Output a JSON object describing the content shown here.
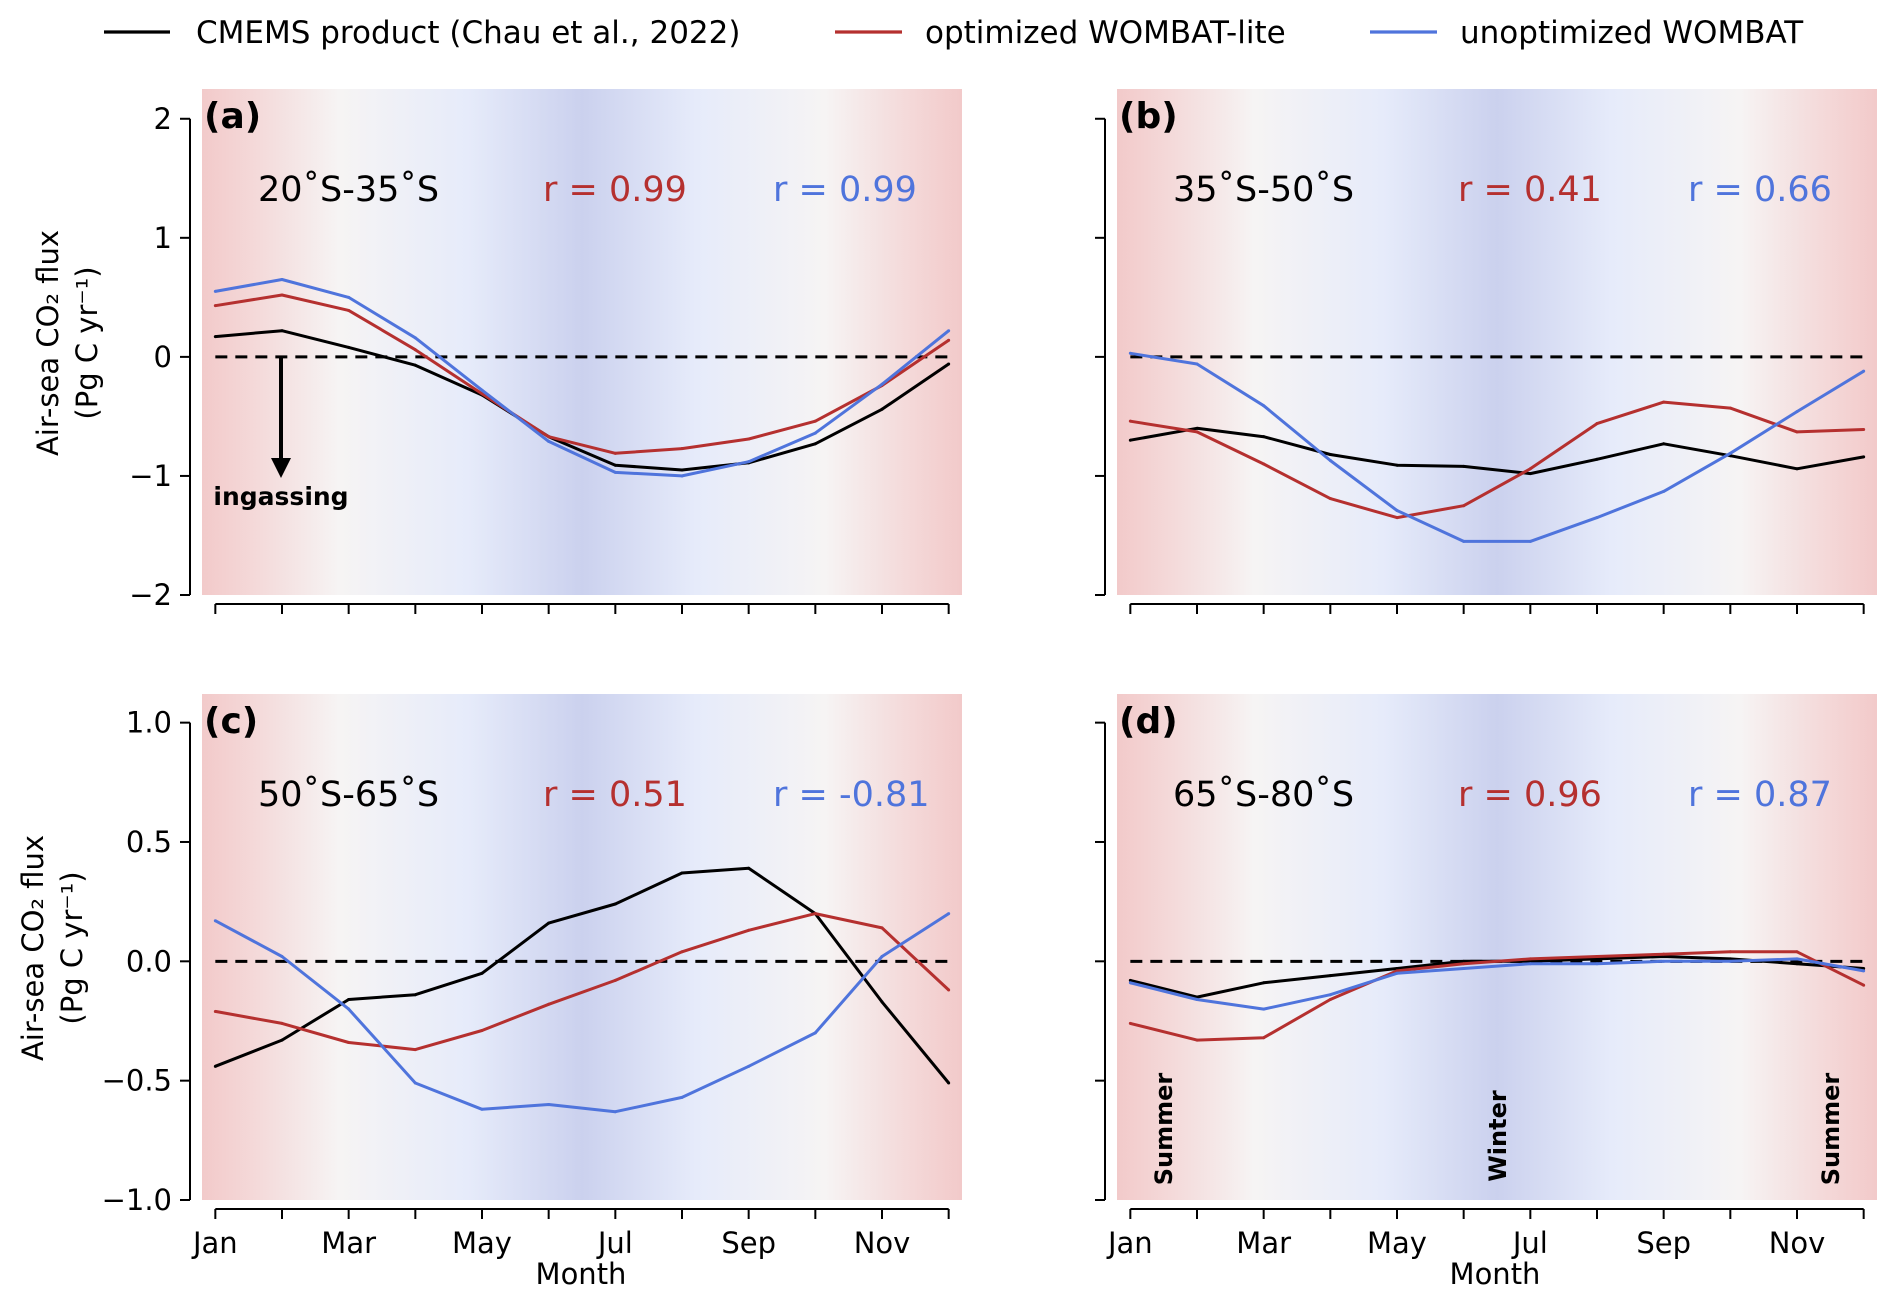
{
  "colors": {
    "cmems": "#000000",
    "lite": "#b5302f",
    "unopt": "#4f74dc",
    "summer": "#f1c4c4",
    "winter": "#cbd1ee",
    "mid": "#f6f4f4"
  },
  "legend": {
    "cmems": "CMEMS product (Chau et al., 2022)",
    "lite": "optimized WOMBAT-lite",
    "unopt": "unoptimized WOMBAT"
  },
  "xlabel": "Month",
  "ylabel": "Air-sea CO₂ flux",
  "ylabel_units": "(Pg C yr⁻¹)",
  "x_tick_labels": [
    "Jan",
    "Mar",
    "May",
    "Jul",
    "Sep",
    "Nov"
  ],
  "ingassing_label": "ingassing",
  "season_labels": {
    "summer": "Summer",
    "winter": "Winter"
  },
  "chart_data": [
    {
      "type": "line",
      "panel": "(a)",
      "region": "20˚S-35˚S",
      "r_lite": "r = 0.99",
      "r_unopt": "r = 0.99",
      "x": [
        1,
        2,
        3,
        4,
        5,
        6,
        7,
        8,
        9,
        10,
        11,
        12
      ],
      "ylim": [
        -2,
        2.25
      ],
      "yticks": [
        -2,
        -1,
        0,
        1,
        2
      ],
      "ytick_labels": [
        "−2",
        "−1",
        "0",
        "1",
        "2"
      ],
      "series": [
        {
          "name": "CMEMS product (Chau et al., 2022)",
          "key": "cmems",
          "values": [
            0.17,
            0.22,
            0.08,
            -0.07,
            -0.32,
            -0.67,
            -0.91,
            -0.95,
            -0.89,
            -0.73,
            -0.44,
            -0.06
          ]
        },
        {
          "name": "optimized WOMBAT-lite",
          "key": "lite",
          "values": [
            0.43,
            0.52,
            0.39,
            0.06,
            -0.31,
            -0.67,
            -0.81,
            -0.77,
            -0.69,
            -0.54,
            -0.24,
            0.14
          ]
        },
        {
          "name": "unoptimized WOMBAT",
          "key": "unopt",
          "values": [
            0.55,
            0.65,
            0.5,
            0.16,
            -0.28,
            -0.71,
            -0.97,
            -1.0,
            -0.88,
            -0.64,
            -0.23,
            0.22
          ]
        }
      ]
    },
    {
      "type": "line",
      "panel": "(b)",
      "region": "35˚S-50˚S",
      "r_lite": "r = 0.41",
      "r_unopt": "r = 0.66",
      "x": [
        1,
        2,
        3,
        4,
        5,
        6,
        7,
        8,
        9,
        10,
        11,
        12
      ],
      "ylim": [
        -2,
        2.25
      ],
      "yticks": [
        -2,
        -1,
        0,
        1,
        2
      ],
      "series": [
        {
          "name": "CMEMS product (Chau et al., 2022)",
          "key": "cmems",
          "values": [
            -0.7,
            -0.6,
            -0.67,
            -0.82,
            -0.91,
            -0.92,
            -0.98,
            -0.86,
            -0.73,
            -0.83,
            -0.94,
            -0.84
          ]
        },
        {
          "name": "optimized WOMBAT-lite",
          "key": "lite",
          "values": [
            -0.54,
            -0.63,
            -0.9,
            -1.19,
            -1.35,
            -1.25,
            -0.94,
            -0.56,
            -0.38,
            -0.43,
            -0.63,
            -0.61
          ]
        },
        {
          "name": "unoptimized WOMBAT",
          "key": "unopt",
          "values": [
            0.03,
            -0.06,
            -0.41,
            -0.87,
            -1.29,
            -1.55,
            -1.55,
            -1.35,
            -1.13,
            -0.81,
            -0.46,
            -0.12
          ]
        }
      ]
    },
    {
      "type": "line",
      "panel": "(c)",
      "region": "50˚S-65˚S",
      "r_lite": "r = 0.51",
      "r_unopt": "r = -0.81",
      "x": [
        1,
        2,
        3,
        4,
        5,
        6,
        7,
        8,
        9,
        10,
        11,
        12
      ],
      "ylim": [
        -1.0,
        1.12
      ],
      "yticks": [
        -1.0,
        -0.5,
        0.0,
        0.5,
        1.0
      ],
      "ytick_labels": [
        "−1.0",
        "−0.5",
        "0.0",
        "0.5",
        "1.0"
      ],
      "series": [
        {
          "name": "CMEMS product (Chau et al., 2022)",
          "key": "cmems",
          "values": [
            -0.44,
            -0.33,
            -0.16,
            -0.14,
            -0.05,
            0.16,
            0.24,
            0.37,
            0.39,
            0.2,
            -0.17,
            -0.51
          ]
        },
        {
          "name": "optimized WOMBAT-lite",
          "key": "lite",
          "values": [
            -0.21,
            -0.26,
            -0.34,
            -0.37,
            -0.29,
            -0.18,
            -0.08,
            0.04,
            0.13,
            0.2,
            0.14,
            -0.12
          ]
        },
        {
          "name": "unoptimized WOMBAT",
          "key": "unopt",
          "values": [
            0.17,
            0.02,
            -0.2,
            -0.51,
            -0.62,
            -0.6,
            -0.63,
            -0.57,
            -0.44,
            -0.3,
            0.02,
            0.2
          ]
        }
      ]
    },
    {
      "type": "line",
      "panel": "(d)",
      "region": "65˚S-80˚S",
      "r_lite": "r = 0.96",
      "r_unopt": "r = 0.87",
      "x": [
        1,
        2,
        3,
        4,
        5,
        6,
        7,
        8,
        9,
        10,
        11,
        12
      ],
      "ylim": [
        -1.0,
        1.12
      ],
      "yticks": [
        -1.0,
        -0.5,
        0.0,
        0.5,
        1.0
      ],
      "series": [
        {
          "name": "CMEMS product (Chau et al., 2022)",
          "key": "cmems",
          "values": [
            -0.08,
            -0.15,
            -0.09,
            -0.06,
            -0.03,
            0.0,
            0.0,
            0.01,
            0.02,
            0.01,
            -0.01,
            -0.03
          ]
        },
        {
          "name": "optimized WOMBAT-lite",
          "key": "lite",
          "values": [
            -0.26,
            -0.33,
            -0.32,
            -0.16,
            -0.04,
            -0.01,
            0.01,
            0.02,
            0.03,
            0.04,
            0.04,
            -0.1
          ]
        },
        {
          "name": "unoptimized WOMBAT",
          "key": "unopt",
          "values": [
            -0.09,
            -0.16,
            -0.2,
            -0.14,
            -0.05,
            -0.03,
            -0.01,
            -0.01,
            0.0,
            0.0,
            0.01,
            -0.04
          ]
        }
      ]
    }
  ]
}
